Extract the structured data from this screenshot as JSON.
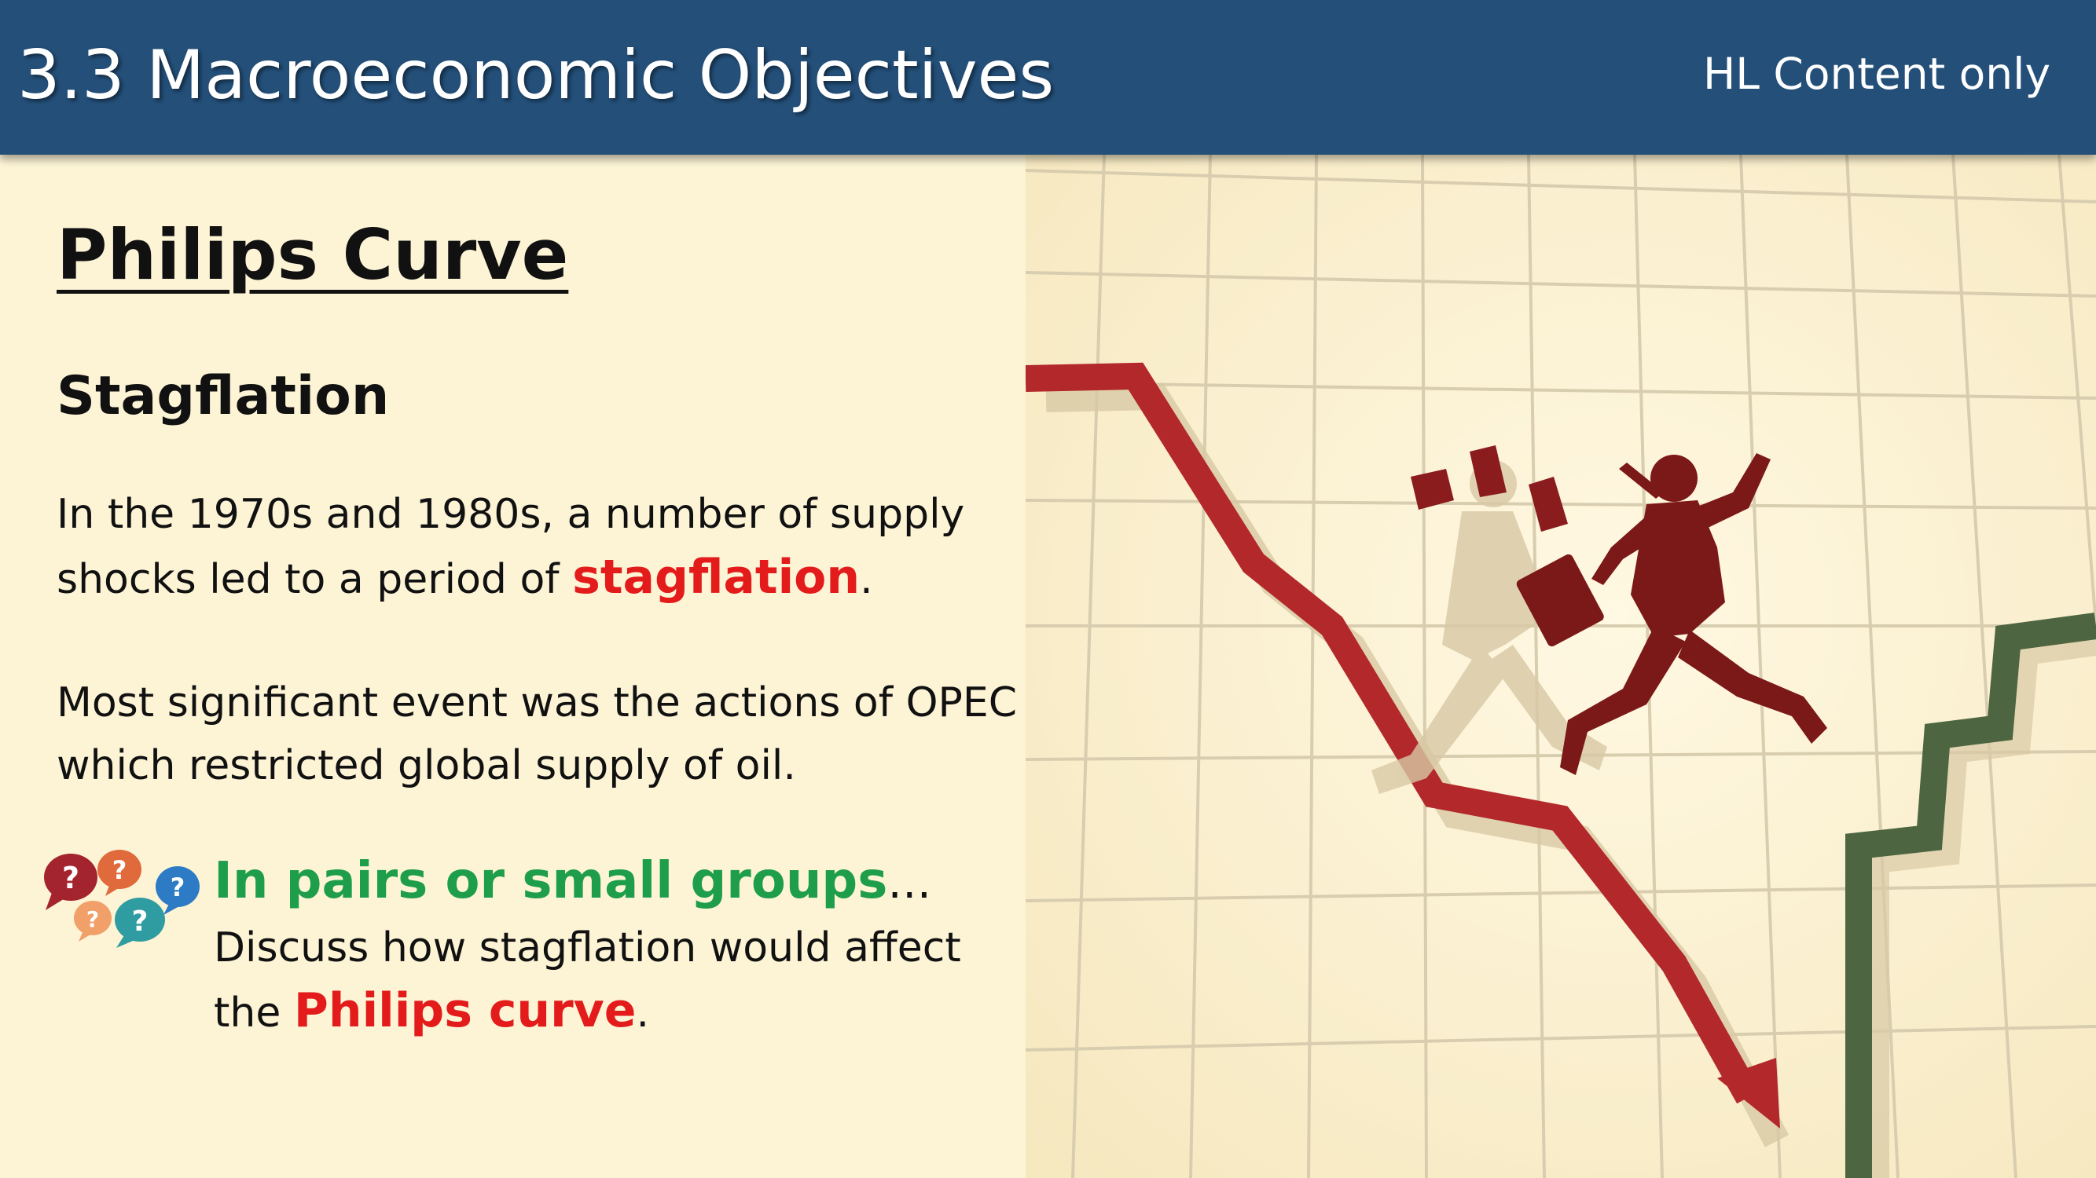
{
  "header": {
    "title": "3.3 Macroeconomic Objectives",
    "tag": "HL Content only"
  },
  "content": {
    "section_title": "Philips Curve",
    "subtitle": "Stagflation",
    "para1_text": "In the 1970s and 1980s, a number of supply shocks led to a period of ",
    "para1_emphasis": "stagflation",
    "para1_end": ".",
    "para2_text": "Most significant event was the actions of OPEC which restricted global supply of oil.",
    "activity": {
      "heading": "In pairs or small groups",
      "heading_suffix": "…",
      "body_text": "Discuss how stagflation would affect the ",
      "body_emphasis": "Philips curve",
      "body_end": "."
    }
  },
  "icons": {
    "discussion": "question-bubbles-icon",
    "illustration": "falling-businessman-chart-illustration"
  },
  "colors": {
    "header_bg": "#234f79",
    "page_bg": "#fdf4d6",
    "emphasis_red": "#e31b1b",
    "activity_green": "#1e9e4a",
    "falling_line": "#b3282a",
    "rising_line": "#4e6541"
  }
}
